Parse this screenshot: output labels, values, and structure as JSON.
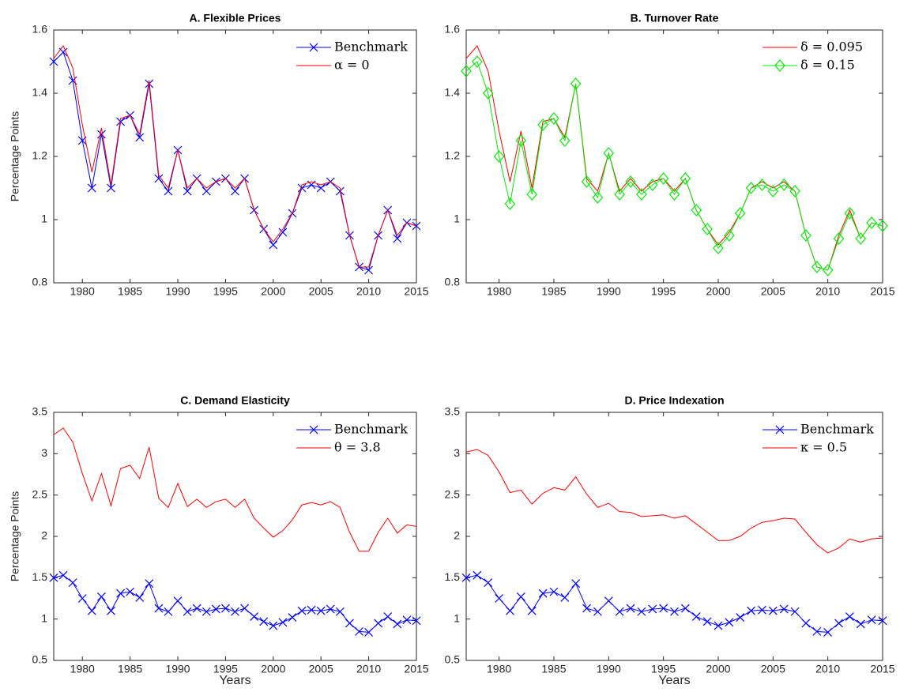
{
  "chart_data": [
    {
      "type": "line",
      "title": "A. Flexible Prices",
      "ylabel": "Percentage Points",
      "x": [
        1977,
        1978,
        1979,
        1980,
        1981,
        1982,
        1983,
        1984,
        1985,
        1986,
        1987,
        1988,
        1989,
        1990,
        1991,
        1992,
        1993,
        1994,
        1995,
        1996,
        1997,
        1998,
        1999,
        2000,
        2001,
        2002,
        2003,
        2004,
        2005,
        2006,
        2007,
        2008,
        2009,
        2010,
        2011,
        2012,
        2013,
        2014,
        2015
      ],
      "xlim": [
        1977,
        2015
      ],
      "xticks": [
        1980,
        1985,
        1990,
        1995,
        2000,
        2005,
        2010,
        2015
      ],
      "ylim": [
        0.8,
        1.6
      ],
      "yticks": [
        0.8,
        1,
        1.2,
        1.4,
        1.6
      ],
      "legend": "northeast",
      "series": [
        {
          "name": "Benchmark",
          "color": "#0000ff",
          "marker": "x",
          "values": [
            1.5,
            1.53,
            1.44,
            1.25,
            1.1,
            1.27,
            1.1,
            1.31,
            1.33,
            1.26,
            1.43,
            1.13,
            1.09,
            1.22,
            1.09,
            1.13,
            1.09,
            1.12,
            1.13,
            1.09,
            1.13,
            1.03,
            0.97,
            0.92,
            0.96,
            1.02,
            1.1,
            1.11,
            1.1,
            1.12,
            1.09,
            0.95,
            0.85,
            0.84,
            0.95,
            1.03,
            0.94,
            0.99,
            0.98
          ]
        },
        {
          "name": "α = 0",
          "color": "#ff0000",
          "values": [
            1.51,
            1.55,
            1.48,
            1.3,
            1.15,
            1.29,
            1.11,
            1.32,
            1.33,
            1.27,
            1.44,
            1.14,
            1.1,
            1.22,
            1.1,
            1.13,
            1.1,
            1.12,
            1.13,
            1.1,
            1.13,
            1.03,
            0.97,
            0.93,
            0.97,
            1.02,
            1.11,
            1.12,
            1.11,
            1.12,
            1.1,
            0.95,
            0.85,
            0.85,
            0.95,
            1.03,
            0.95,
            0.99,
            0.98
          ]
        }
      ]
    },
    {
      "type": "line",
      "title": "B. Turnover Rate",
      "x": [
        1977,
        1978,
        1979,
        1980,
        1981,
        1982,
        1983,
        1984,
        1985,
        1986,
        1987,
        1988,
        1989,
        1990,
        1991,
        1992,
        1993,
        1994,
        1995,
        1996,
        1997,
        1998,
        1999,
        2000,
        2001,
        2002,
        2003,
        2004,
        2005,
        2006,
        2007,
        2008,
        2009,
        2010,
        2011,
        2012,
        2013,
        2014,
        2015
      ],
      "xlim": [
        1977,
        2015
      ],
      "xticks": [
        1980,
        1985,
        1990,
        1995,
        2000,
        2005,
        2010,
        2015
      ],
      "ylim": [
        0.8,
        1.6
      ],
      "yticks": [
        0.8,
        1,
        1.2,
        1.4,
        1.6
      ],
      "legend": "northeast",
      "series": [
        {
          "name": "δ = 0.095",
          "color": "#ff0000",
          "values": [
            1.51,
            1.55,
            1.47,
            1.28,
            1.12,
            1.28,
            1.1,
            1.31,
            1.32,
            1.26,
            1.43,
            1.13,
            1.09,
            1.21,
            1.09,
            1.13,
            1.09,
            1.12,
            1.13,
            1.09,
            1.13,
            1.03,
            0.97,
            0.92,
            0.96,
            1.02,
            1.1,
            1.12,
            1.1,
            1.12,
            1.09,
            0.95,
            0.85,
            0.84,
            0.95,
            1.03,
            0.94,
            0.99,
            0.98
          ]
        },
        {
          "name": "δ = 0.15",
          "color": "#00ee00",
          "marker": "diamond",
          "values": [
            1.47,
            1.5,
            1.4,
            1.2,
            1.05,
            1.25,
            1.08,
            1.3,
            1.32,
            1.25,
            1.43,
            1.12,
            1.07,
            1.21,
            1.08,
            1.12,
            1.08,
            1.11,
            1.13,
            1.08,
            1.13,
            1.03,
            0.97,
            0.91,
            0.95,
            1.02,
            1.1,
            1.11,
            1.09,
            1.11,
            1.09,
            0.95,
            0.85,
            0.84,
            0.94,
            1.02,
            0.94,
            0.99,
            0.98
          ]
        }
      ]
    },
    {
      "type": "line",
      "title": "C. Demand Elasticity",
      "ylabel": "Percentage Points",
      "xlabel": "Years",
      "x": [
        1977,
        1978,
        1979,
        1980,
        1981,
        1982,
        1983,
        1984,
        1985,
        1986,
        1987,
        1988,
        1989,
        1990,
        1991,
        1992,
        1993,
        1994,
        1995,
        1996,
        1997,
        1998,
        1999,
        2000,
        2001,
        2002,
        2003,
        2004,
        2005,
        2006,
        2007,
        2008,
        2009,
        2010,
        2011,
        2012,
        2013,
        2014,
        2015
      ],
      "xlim": [
        1977,
        2015
      ],
      "xticks": [
        1980,
        1985,
        1990,
        1995,
        2000,
        2005,
        2010,
        2015
      ],
      "ylim": [
        0.5,
        3.5
      ],
      "yticks": [
        0.5,
        1,
        1.5,
        2,
        2.5,
        3,
        3.5
      ],
      "legend": "northeast",
      "series": [
        {
          "name": "Benchmark",
          "color": "#0000ff",
          "marker": "x",
          "values": [
            1.5,
            1.53,
            1.44,
            1.25,
            1.1,
            1.27,
            1.1,
            1.31,
            1.33,
            1.26,
            1.43,
            1.13,
            1.09,
            1.22,
            1.09,
            1.13,
            1.09,
            1.12,
            1.13,
            1.09,
            1.13,
            1.03,
            0.97,
            0.92,
            0.96,
            1.02,
            1.1,
            1.11,
            1.1,
            1.12,
            1.09,
            0.95,
            0.85,
            0.84,
            0.95,
            1.03,
            0.94,
            0.99,
            0.98
          ]
        },
        {
          "name": "θ = 3.8",
          "color": "#ff0000",
          "values": [
            3.23,
            3.31,
            3.14,
            2.76,
            2.43,
            2.76,
            2.37,
            2.82,
            2.86,
            2.7,
            3.08,
            2.46,
            2.35,
            2.64,
            2.36,
            2.45,
            2.35,
            2.42,
            2.45,
            2.35,
            2.45,
            2.22,
            2.1,
            1.99,
            2.07,
            2.2,
            2.38,
            2.41,
            2.38,
            2.42,
            2.35,
            2.05,
            1.82,
            1.82,
            2.05,
            2.22,
            2.04,
            2.14,
            2.12
          ]
        }
      ]
    },
    {
      "type": "line",
      "title": "D. Price Indexation",
      "xlabel": "Years",
      "x": [
        1977,
        1978,
        1979,
        1980,
        1981,
        1982,
        1983,
        1984,
        1985,
        1986,
        1987,
        1988,
        1989,
        1990,
        1991,
        1992,
        1993,
        1994,
        1995,
        1996,
        1997,
        1998,
        1999,
        2000,
        2001,
        2002,
        2003,
        2004,
        2005,
        2006,
        2007,
        2008,
        2009,
        2010,
        2011,
        2012,
        2013,
        2014,
        2015
      ],
      "xlim": [
        1977,
        2015
      ],
      "xticks": [
        1980,
        1985,
        1990,
        1995,
        2000,
        2005,
        2010,
        2015
      ],
      "ylim": [
        0.5,
        3.5
      ],
      "yticks": [
        0.5,
        1,
        1.5,
        2,
        2.5,
        3,
        3.5
      ],
      "legend": "northeast",
      "series": [
        {
          "name": "Benchmark",
          "color": "#0000ff",
          "marker": "x",
          "values": [
            1.5,
            1.53,
            1.44,
            1.25,
            1.1,
            1.27,
            1.1,
            1.31,
            1.33,
            1.26,
            1.43,
            1.13,
            1.09,
            1.22,
            1.09,
            1.13,
            1.09,
            1.12,
            1.13,
            1.09,
            1.13,
            1.03,
            0.97,
            0.92,
            0.96,
            1.02,
            1.1,
            1.11,
            1.1,
            1.12,
            1.09,
            0.95,
            0.85,
            0.84,
            0.95,
            1.03,
            0.94,
            0.99,
            0.98
          ]
        },
        {
          "name": "κ = 0.5",
          "color": "#ff0000",
          "values": [
            3.02,
            3.05,
            2.98,
            2.78,
            2.53,
            2.56,
            2.39,
            2.52,
            2.59,
            2.56,
            2.72,
            2.51,
            2.35,
            2.4,
            2.3,
            2.29,
            2.24,
            2.25,
            2.26,
            2.22,
            2.25,
            2.15,
            2.05,
            1.95,
            1.95,
            2.0,
            2.1,
            2.17,
            2.19,
            2.22,
            2.21,
            2.05,
            1.9,
            1.8,
            1.86,
            1.97,
            1.93,
            1.97,
            1.98
          ]
        }
      ]
    }
  ]
}
